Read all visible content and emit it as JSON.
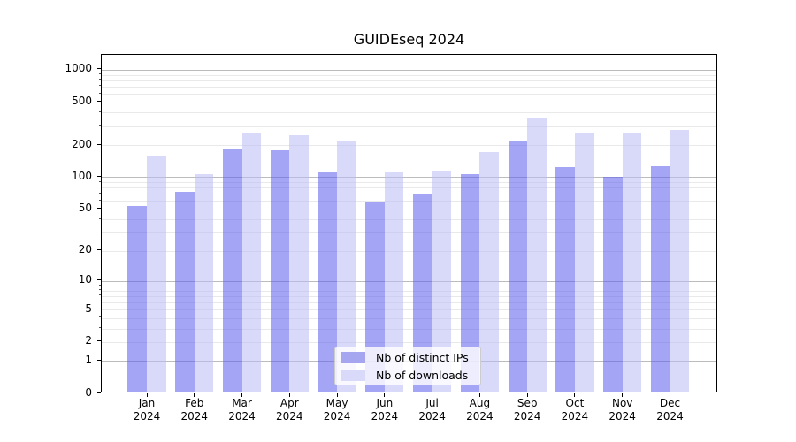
{
  "figure": {
    "background": "#ffffff"
  },
  "chart_data": {
    "type": "bar",
    "title": "GUIDEseq 2024",
    "categories": [
      "Jan",
      "Feb",
      "Mar",
      "Apr",
      "May",
      "Jun",
      "Jul",
      "Aug",
      "Sep",
      "Oct",
      "Nov",
      "Dec"
    ],
    "x_tick_year": "2024",
    "series": [
      {
        "name": "Nb of distinct IPs",
        "color": "rgba(91,91,237,0.55)",
        "legend_color": "#a6a6f0",
        "values": [
          54,
          73,
          182,
          180,
          112,
          59,
          69,
          107,
          215,
          124,
          101,
          127
        ]
      },
      {
        "name": "Nb of downloads",
        "color": "rgba(186,186,246,0.55)",
        "legend_color": "#d9d9fa",
        "values": [
          160,
          107,
          255,
          248,
          218,
          110,
          113,
          173,
          362,
          261,
          261,
          276
        ]
      }
    ],
    "y_axis": {
      "scale": "log1p",
      "tick_labels": [
        "0",
        "1",
        "2",
        "5",
        "10",
        "20",
        "50",
        "100",
        "200",
        "500",
        "1000"
      ],
      "tick_values": [
        0,
        1,
        2,
        5,
        10,
        20,
        50,
        100,
        200,
        500,
        1000
      ],
      "major_grid_values": [
        1,
        10,
        100,
        1000
      ],
      "axis_max": 1378,
      "ylim": [
        0,
        1378
      ]
    },
    "legend": {
      "position": "lower center"
    },
    "grid": true
  }
}
